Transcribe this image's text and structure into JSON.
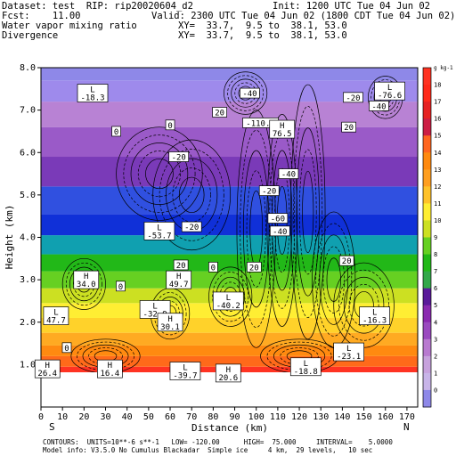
{
  "header": {
    "dataset": "Dataset: test  RIP: rip20020604_d2",
    "init": "Init: 1200 UTC Tue 04 Jun 02",
    "fcst": "Fcst:    11.00",
    "valid": "Valid: 2300 UTC Tue 04 Jun 02 (1800 CDT Tue 04 Jun 02)",
    "field1_name": "Water vapor mixing ratio",
    "field1_xy": "XY=  33.7,  9.5 to  38.1, 53.0",
    "field2_name": "Divergence",
    "field2_xy": "XY=  33.7,  9.5 to  38.1, 53.0"
  },
  "colorbar": {
    "unit": "g kg-1",
    "labels": [
      "18",
      "17",
      "16",
      "15",
      "14",
      "13",
      "12",
      "11",
      "10",
      "9",
      "8",
      "7",
      "6",
      "5",
      "4",
      "3",
      "2",
      "1",
      "0"
    ],
    "colors": [
      "#ff3322",
      "#ff2a1a",
      "#e62222",
      "#cc1e44",
      "#ff6620",
      "#ff8a10",
      "#ff9f20",
      "#ffc22a",
      "#ffee33",
      "#cce022",
      "#66d022",
      "#22b818",
      "#33a84a",
      "#5a1a9a",
      "#8a2ab0",
      "#9a4ac0",
      "#b87ad0",
      "#c7a2dd",
      "#c8b4e8",
      "#8e88e8"
    ]
  },
  "footer": {
    "line1": "CONTOURS:  UNITS=10**-6 s**-1   LOW= -120.00      HIGH=  75.000     INTERVAL=    5.0000",
    "line2": "Model info: V3.5.0 No Cumulus Blackadar  Simple ice     4 km,  29 levels,   10 sec"
  },
  "compass": {
    "left": "S",
    "right": "N"
  },
  "chart_data": {
    "type": "contour",
    "xlabel": "Distance (km)",
    "ylabel": "Height (km)",
    "xlim": [
      0,
      175
    ],
    "ylim": [
      0,
      8.0
    ],
    "x_ticks": [
      "0",
      "10",
      "20",
      "30",
      "40",
      "50",
      "60",
      "70",
      "80",
      "90",
      "100",
      "110",
      "120",
      "130",
      "140",
      "150",
      "160",
      "170"
    ],
    "y_ticks": [
      "1.0",
      "2.0",
      "3.0",
      "4.0",
      "5.0",
      "6.0",
      "7.0",
      "8.0"
    ],
    "terrain_top_km": 0.9,
    "contour_labels": [
      {
        "text": "L\n-18.3",
        "x": 24,
        "y": 7.4
      },
      {
        "text": "L\n-76.6",
        "x": 162,
        "y": 7.45
      },
      {
        "text": "-40",
        "x": 97,
        "y": 7.4
      },
      {
        "text": "-20",
        "x": 145,
        "y": 7.3
      },
      {
        "text": "-40",
        "x": 157,
        "y": 7.1
      },
      {
        "text": "20",
        "x": 83,
        "y": 6.95
      },
      {
        "text": "-110.0",
        "x": 102,
        "y": 6.7
      },
      {
        "text": "H\n76.5",
        "x": 112,
        "y": 6.55
      },
      {
        "text": "0",
        "x": 35,
        "y": 6.5
      },
      {
        "text": "0",
        "x": 60,
        "y": 6.65
      },
      {
        "text": "20",
        "x": 143,
        "y": 6.6
      },
      {
        "text": "-20",
        "x": 64,
        "y": 5.9
      },
      {
        "text": "-40",
        "x": 115,
        "y": 5.5
      },
      {
        "text": "-20",
        "x": 106,
        "y": 5.1
      },
      {
        "text": "-20",
        "x": 70,
        "y": 4.25
      },
      {
        "text": "-60",
        "x": 110,
        "y": 4.45
      },
      {
        "text": "-40",
        "x": 111,
        "y": 4.15
      },
      {
        "text": "L\n-53.7",
        "x": 55,
        "y": 4.15
      },
      {
        "text": "20",
        "x": 65,
        "y": 3.35
      },
      {
        "text": "H\n49.7",
        "x": 64,
        "y": 3.0
      },
      {
        "text": "0",
        "x": 80,
        "y": 3.3
      },
      {
        "text": "20",
        "x": 99,
        "y": 3.3
      },
      {
        "text": "20",
        "x": 142,
        "y": 3.45
      },
      {
        "text": "H\n34.0",
        "x": 21,
        "y": 3.0
      },
      {
        "text": "0",
        "x": 37,
        "y": 2.85
      },
      {
        "text": "L\n-40.2",
        "x": 87,
        "y": 2.5
      },
      {
        "text": "L\n-32.9",
        "x": 53,
        "y": 2.3
      },
      {
        "text": "H\n30.1",
        "x": 60,
        "y": 2.0
      },
      {
        "text": "L\n-16.3",
        "x": 155,
        "y": 2.15
      },
      {
        "text": "L\n47.7",
        "x": 7,
        "y": 2.15
      },
      {
        "text": "0",
        "x": 12,
        "y": 1.4
      },
      {
        "text": "L\n-23.1",
        "x": 143,
        "y": 1.3
      },
      {
        "text": "H\n26.4",
        "x": 3,
        "y": 0.9
      },
      {
        "text": "H\n16.4",
        "x": 32,
        "y": 0.9
      },
      {
        "text": "L\n-39.7",
        "x": 67,
        "y": 0.85
      },
      {
        "text": "H\n20.6",
        "x": 87,
        "y": 0.8
      },
      {
        "text": "L\n-18.8",
        "x": 123,
        "y": 0.95
      }
    ]
  }
}
